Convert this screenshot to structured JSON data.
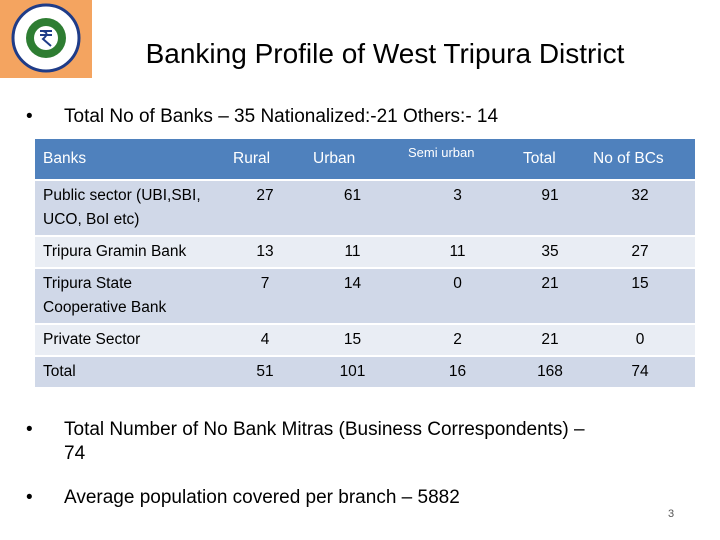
{
  "header": {
    "title": "Banking Profile of West Tripura District"
  },
  "bullets_top": [
    "Total No of Banks – 35  Nationalized:-21 Others:- 14"
  ],
  "table": {
    "columns": [
      "Banks",
      "Rural",
      "Urban",
      "Semi urban",
      "Total",
      "No of BCs"
    ],
    "rows": [
      [
        "Public sector (UBI,SBI, UCO, BoI etc)",
        27,
        61,
        3,
        91,
        32
      ],
      [
        "Tripura Gramin Bank",
        13,
        11,
        11,
        35,
        27
      ],
      [
        "Tripura State Cooperative Bank",
        7,
        14,
        0,
        21,
        15
      ],
      [
        "Private Sector",
        4,
        15,
        2,
        21,
        0
      ],
      [
        "Total",
        51,
        101,
        16,
        168,
        74
      ]
    ]
  },
  "bullets_bottom": [
    "Total Number of No  Bank Mitras (Business Correspondents) – 74",
    "Average population covered per branch – 5882"
  ],
  "page_number": 3
}
